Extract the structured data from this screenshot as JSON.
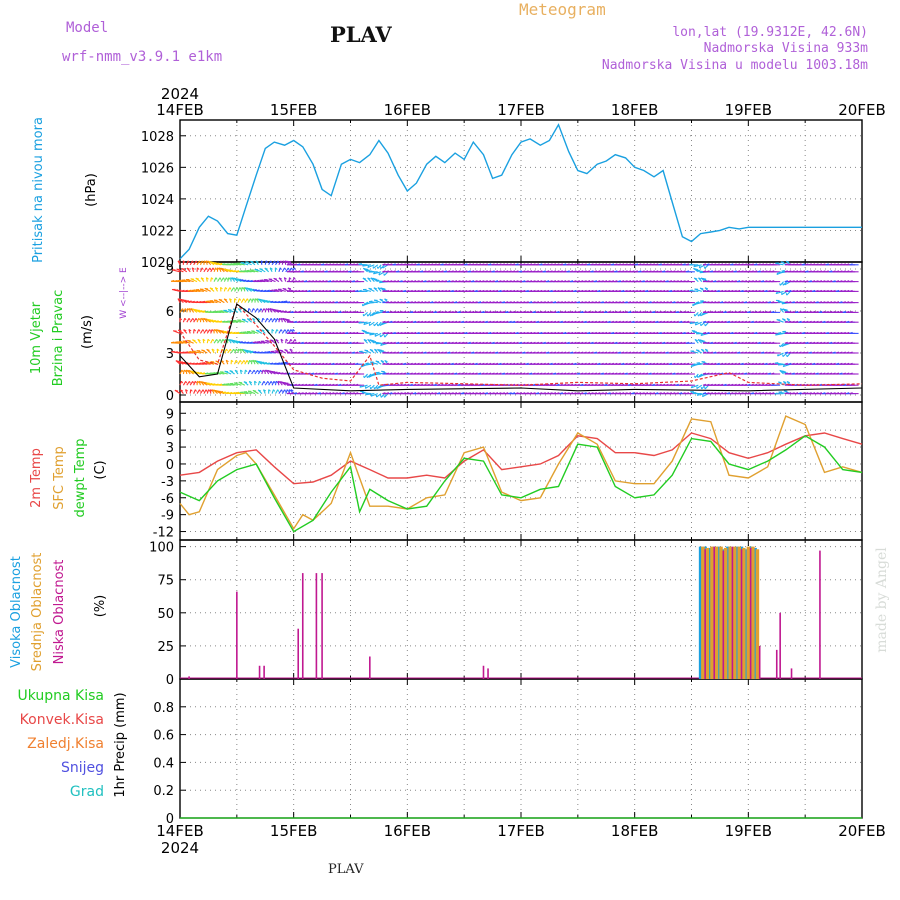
{
  "header": {
    "model_label": "Model",
    "model_name": "wrf-nmm_v3.9.1  e1km",
    "station": "PLAV",
    "product": "Meteogram",
    "coords": "lon,lat (19.9312E, 42.6N)",
    "elevation": "Nadmorska Visina 933m",
    "model_elevation": "Nadmorska Visina u modelu 1003.18m"
  },
  "footer": {
    "station": "PLAV",
    "watermark": "made by Angel"
  },
  "colors": {
    "pressure": "#1aa0e0",
    "temp2m": "#e84848",
    "sfc_temp": "#e0a030",
    "dewpoint": "#22cc22",
    "wind_label": "#22cc22",
    "cloud_high": "#1aa0e0",
    "cloud_mid": "#e0a030",
    "cloud_low": "#c01890",
    "wind_barb": "#9a20c8",
    "speed_line": "#e83030",
    "gust_line": "#000000"
  },
  "chart_data": [
    {
      "type": "line",
      "id": "pressure",
      "ylabel": [
        "Pritisak na nivou mora",
        "(hPa)"
      ],
      "ylim": [
        1020,
        1029
      ],
      "yticks": [
        1020,
        1022,
        1024,
        1026,
        1028
      ],
      "x_year": "2024",
      "x_dates": [
        "14FEB",
        "15FEB",
        "16FEB",
        "17FEB",
        "18FEB",
        "19FEB",
        "20FEB"
      ],
      "grid": true,
      "series": [
        {
          "color_key": "pressure",
          "x": [
            0,
            0.08,
            0.17,
            0.25,
            0.33,
            0.42,
            0.5,
            0.58,
            0.67,
            0.75,
            0.83,
            0.92,
            1.0,
            1.08,
            1.17,
            1.25,
            1.33,
            1.42,
            1.5,
            1.58,
            1.67,
            1.75,
            1.83,
            1.92,
            2.0,
            2.08,
            2.17,
            2.25,
            2.33,
            2.42,
            2.5,
            2.58,
            2.67,
            2.75,
            2.83,
            2.92,
            3.0,
            3.08,
            3.17,
            3.25,
            3.33,
            3.42,
            3.5,
            3.58,
            3.67,
            3.75,
            3.83,
            3.92,
            4.0,
            4.08,
            4.17,
            4.25,
            4.33,
            4.42,
            4.5,
            4.58,
            4.67,
            4.75,
            4.83,
            4.92,
            5.0,
            5.08,
            5.17,
            5.25,
            5.33,
            5.42,
            5.5,
            5.58,
            5.67,
            5.75,
            5.83,
            5.92,
            6.0
          ],
          "y": [
            1020.2,
            1020.8,
            1022.2,
            1022.9,
            1022.6,
            1021.8,
            1021.7,
            1023.5,
            1025.5,
            1027.2,
            1027.6,
            1027.4,
            1027.7,
            1027.3,
            1026.2,
            1024.6,
            1024.2,
            1026.2,
            1026.5,
            1026.3,
            1026.8,
            1027.7,
            1026.9,
            1025.5,
            1024.5,
            1025.0,
            1026.2,
            1026.7,
            1026.3,
            1026.9,
            1026.5,
            1027.6,
            1026.8,
            1025.3,
            1025.5,
            1026.8,
            1027.6,
            1027.8,
            1027.4,
            1027.7,
            1028.7,
            1027.0,
            1025.8,
            1025.6,
            1026.2,
            1026.4,
            1026.8,
            1026.6,
            1026.0,
            1025.8,
            1025.4,
            1025.8,
            1023.8,
            1021.6,
            1021.3,
            1021.8,
            1021.9,
            1022.0,
            1022.2,
            1022.1,
            1022.2,
            1022.2,
            1022.2,
            1022.2,
            1022.2,
            1022.2,
            1022.2,
            1022.2,
            1022.2,
            1022.2,
            1022.2,
            1022.2,
            1022.2
          ]
        }
      ]
    },
    {
      "type": "line",
      "id": "wind",
      "ylabel": [
        "10m Vjetar",
        "Brzina i Pravac",
        "(m/s)"
      ],
      "compass": "W  <--|-->  E",
      "ylim": [
        -0.5,
        9.5
      ],
      "yticks": [
        0,
        3,
        6,
        9
      ],
      "grid": true,
      "series": [
        {
          "color_key": "speed_line",
          "x": [
            0,
            0.17,
            0.33,
            0.5,
            0.67,
            0.83,
            1.0,
            1.25,
            1.5,
            1.67,
            1.75,
            2.0,
            2.5,
            3.0,
            3.5,
            4.0,
            4.5,
            4.83,
            5.0,
            5.5,
            6.0
          ],
          "y": [
            4.5,
            2.5,
            2.2,
            6.5,
            5.0,
            3.5,
            1.8,
            1.2,
            1.0,
            2.8,
            0.7,
            0.9,
            0.8,
            0.7,
            0.9,
            0.8,
            1.0,
            1.6,
            0.9,
            0.7,
            0.8
          ]
        },
        {
          "color_key": "gust_line",
          "x": [
            0,
            0.17,
            0.33,
            0.5,
            0.67,
            0.83,
            1.0,
            1.5,
            2.0,
            3.0,
            3.5,
            4.0,
            5.0,
            6.0
          ],
          "y": [
            2.8,
            1.3,
            1.5,
            6.5,
            5.5,
            4.0,
            0.5,
            0.3,
            0.4,
            0.5,
            0.3,
            0.4,
            0.3,
            0.5
          ]
        }
      ]
    },
    {
      "type": "line",
      "id": "temperature",
      "ylabel": [
        "2m Temp",
        "SFC Temp",
        "dewpt Temp",
        "(C)"
      ],
      "ylim": [
        -13.5,
        11
      ],
      "yticks": [
        -12,
        -9,
        -6,
        -3,
        0,
        3,
        6,
        9
      ],
      "grid": true,
      "series": [
        {
          "name": "2m Temp",
          "color_key": "temp2m",
          "x": [
            0,
            0.17,
            0.33,
            0.5,
            0.67,
            0.83,
            1.0,
            1.17,
            1.33,
            1.5,
            1.67,
            1.83,
            2.0,
            2.17,
            2.33,
            2.5,
            2.67,
            2.83,
            3.0,
            3.17,
            3.33,
            3.5,
            3.67,
            3.83,
            4.0,
            4.17,
            4.33,
            4.5,
            4.67,
            4.83,
            5.0,
            5.17,
            5.33,
            5.5,
            5.67,
            5.83,
            6.0
          ],
          "y": [
            -2.0,
            -1.5,
            0.5,
            2.0,
            2.5,
            -0.5,
            -3.5,
            -3.2,
            -2.0,
            0.5,
            -1.0,
            -2.5,
            -2.5,
            -2.0,
            -2.5,
            0.5,
            2.5,
            -1.0,
            -0.5,
            0.0,
            1.5,
            5.0,
            4.5,
            2.0,
            2.0,
            1.5,
            2.5,
            5.5,
            4.5,
            2.0,
            1.0,
            2.0,
            3.5,
            5.0,
            5.5,
            4.5,
            3.5
          ]
        },
        {
          "name": "SFC Temp",
          "color_key": "sfc_temp",
          "x": [
            0,
            0.08,
            0.17,
            0.33,
            0.5,
            0.58,
            0.67,
            0.83,
            1.0,
            1.08,
            1.17,
            1.33,
            1.5,
            1.67,
            1.83,
            2.0,
            2.17,
            2.33,
            2.5,
            2.67,
            2.83,
            3.0,
            3.17,
            3.33,
            3.5,
            3.67,
            3.83,
            4.0,
            4.17,
            4.33,
            4.5,
            4.67,
            4.83,
            5.0,
            5.17,
            5.33,
            5.5,
            5.67,
            5.83,
            6.0
          ],
          "y": [
            -7.0,
            -9.0,
            -8.5,
            -1.0,
            1.5,
            2.0,
            0.0,
            -5.5,
            -11.5,
            -9.0,
            -10.0,
            -7.0,
            2.0,
            -7.5,
            -7.5,
            -8.0,
            -6.0,
            -5.5,
            2.0,
            3.0,
            -5.0,
            -6.5,
            -6.0,
            0.0,
            5.5,
            3.5,
            -3.0,
            -3.5,
            -3.5,
            0.5,
            8.0,
            7.5,
            -2.0,
            -2.5,
            -0.5,
            8.5,
            7.0,
            -1.5,
            -0.5,
            -1.5
          ]
        },
        {
          "name": "dewpt Temp",
          "color_key": "dewpoint",
          "x": [
            0,
            0.17,
            0.33,
            0.5,
            0.67,
            0.83,
            1.0,
            1.17,
            1.33,
            1.5,
            1.58,
            1.67,
            1.83,
            2.0,
            2.17,
            2.33,
            2.5,
            2.67,
            2.83,
            3.0,
            3.17,
            3.33,
            3.5,
            3.67,
            3.83,
            4.0,
            4.17,
            4.33,
            4.5,
            4.67,
            4.83,
            5.0,
            5.17,
            5.33,
            5.5,
            5.67,
            5.83,
            6.0
          ],
          "y": [
            -5.0,
            -6.5,
            -3.0,
            -1.0,
            0.0,
            -6.0,
            -12.0,
            -10.0,
            -5.0,
            -0.5,
            -8.5,
            -4.5,
            -6.5,
            -8.0,
            -7.5,
            -3.0,
            1.0,
            0.5,
            -5.5,
            -6.0,
            -4.5,
            -4.0,
            3.5,
            3.0,
            -4.0,
            -6.0,
            -5.5,
            -2.0,
            4.5,
            4.0,
            0.0,
            -1.0,
            0.5,
            2.5,
            5.0,
            3.0,
            -1.0,
            -1.5
          ]
        }
      ]
    },
    {
      "type": "bar",
      "id": "clouds",
      "ylabel": [
        "Visoka Oblacnost",
        "Srednja Oblacnost",
        "Niska Oblacnost",
        "(%)"
      ],
      "ylim": [
        0,
        105
      ],
      "yticks": [
        0,
        25,
        50,
        75,
        100
      ],
      "grid": true,
      "series": [
        {
          "name": "Visoka Oblacnost",
          "color_key": "cloud_high",
          "x": [
            4.58,
            4.62,
            4.66,
            4.7,
            4.74,
            4.78,
            4.82,
            4.86,
            4.9,
            4.94,
            4.98,
            5.02,
            5.06
          ],
          "values": [
            100,
            100,
            99,
            100,
            100,
            98,
            100,
            99,
            100,
            100,
            98,
            100,
            99
          ]
        },
        {
          "name": "Srednja Oblacnost",
          "color_key": "cloud_mid",
          "x": [
            4.6,
            4.64,
            4.68,
            4.72,
            4.76,
            4.8,
            4.84,
            4.88,
            4.92,
            4.96,
            5.0,
            5.04,
            5.08
          ],
          "values": [
            100,
            99,
            100,
            100,
            100,
            99,
            100,
            100,
            100,
            99,
            100,
            100,
            98
          ]
        },
        {
          "name": "Niska Oblacnost",
          "color_key": "cloud_low",
          "x": [
            0.08,
            0.5,
            0.7,
            0.74,
            1.04,
            1.08,
            1.2,
            1.25,
            1.67,
            2.67,
            2.71,
            4.62,
            4.7,
            4.78,
            4.86,
            4.94,
            5.02,
            5.1,
            5.25,
            5.28,
            5.38,
            5.63
          ],
          "values": [
            2,
            66,
            10,
            10,
            38,
            80,
            80,
            80,
            17,
            10,
            8,
            98,
            100,
            97,
            100,
            98,
            99,
            25,
            22,
            50,
            8,
            97
          ]
        }
      ]
    },
    {
      "type": "line",
      "id": "precip",
      "ylabel": [
        "1hr Precip (mm)"
      ],
      "legend": [
        "Ukupna Kisa",
        "Konvek.Kisa",
        "Zaledj.Kisa",
        "Snijeg",
        "Grad"
      ],
      "legend_colors": [
        "#22cc22",
        "#e84848",
        "#f08030",
        "#5050e0",
        "#20c0c0"
      ],
      "ylim": [
        0,
        1.0
      ],
      "yticks": [
        0,
        0.2,
        0.4,
        0.6,
        0.8
      ],
      "grid": true,
      "series": [
        {
          "name": "Ukupna Kisa",
          "x": [
            0,
            6
          ],
          "y": [
            0,
            0
          ]
        }
      ]
    }
  ]
}
